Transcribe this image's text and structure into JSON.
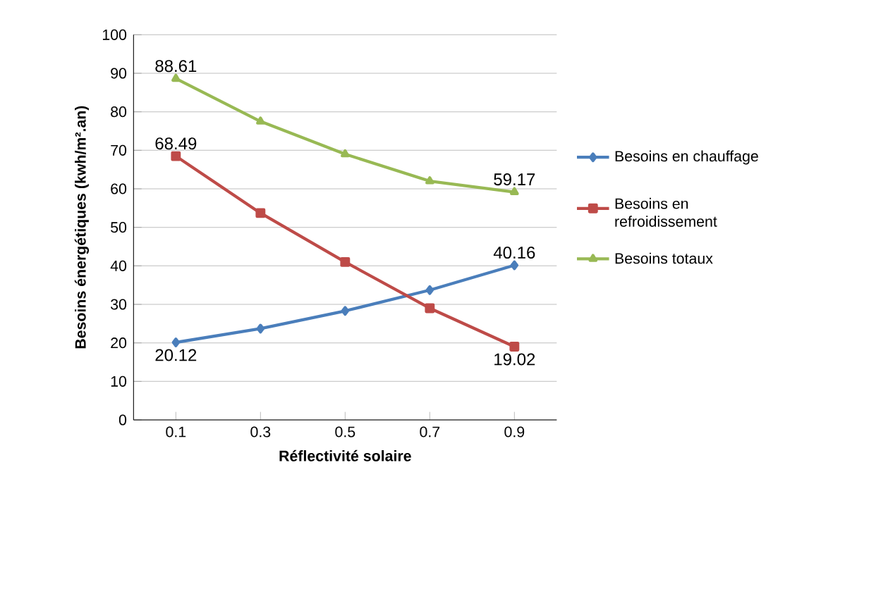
{
  "chart_data": {
    "type": "line",
    "xlabel": "Réflectivité solaire",
    "ylabel": "Besoins énergétiques (kwh/m².an)",
    "categories": [
      "0.1",
      "0.3",
      "0.5",
      "0.7",
      "0.9"
    ],
    "series": [
      {
        "name": "Besoins en chauffage",
        "color": "#4a7ebb",
        "marker": "diamond",
        "values": [
          20.12,
          23.7,
          28.3,
          33.7,
          40.16
        ],
        "value_labels": [
          "20.12",
          null,
          null,
          null,
          "40.16"
        ]
      },
      {
        "name": "Besoins en refroidissement",
        "color": "#be4b48",
        "marker": "square",
        "values": [
          68.49,
          53.7,
          41.0,
          29.0,
          19.02
        ],
        "value_labels": [
          "68.49",
          null,
          null,
          null,
          "19.02"
        ]
      },
      {
        "name": "Besoins totaux",
        "color": "#98b954",
        "marker": "triangle",
        "values": [
          88.61,
          77.5,
          69.0,
          62.0,
          59.17
        ],
        "value_labels": [
          "88.61",
          null,
          null,
          null,
          "59.17"
        ]
      }
    ],
    "ylim": [
      0,
      100
    ],
    "yticks": [
      0,
      10,
      20,
      30,
      40,
      50,
      60,
      70,
      80,
      90,
      100
    ],
    "grid": "y",
    "legend": "right"
  }
}
